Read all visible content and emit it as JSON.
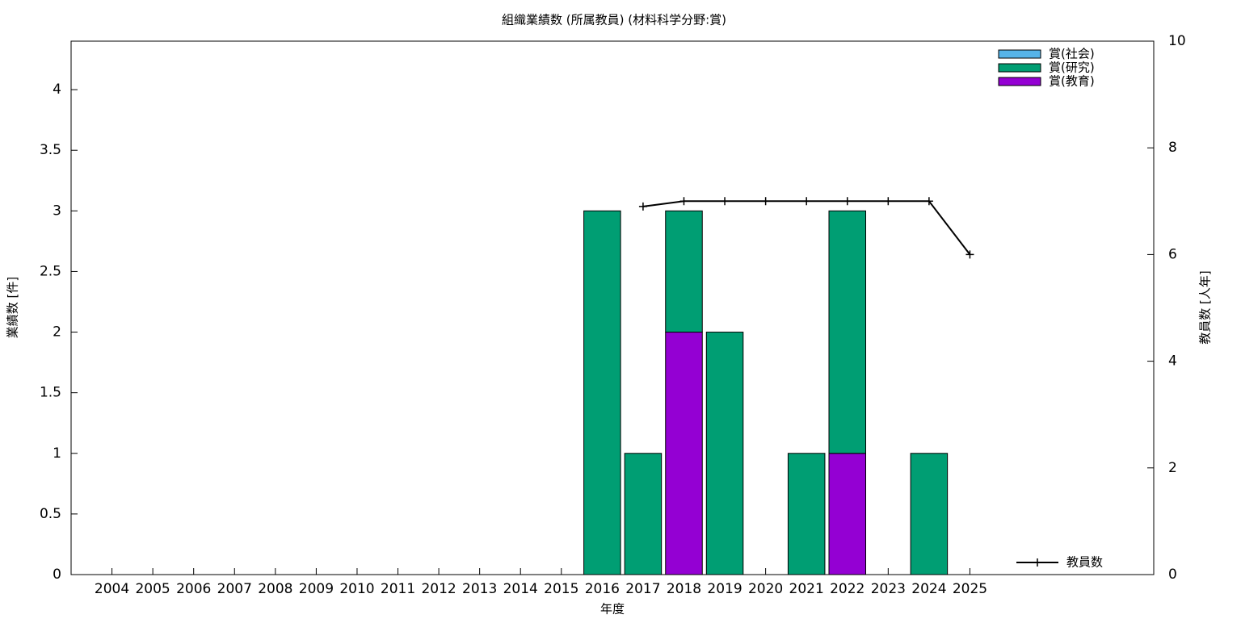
{
  "chart_data": {
    "type": "bar",
    "stacked": true,
    "title": "組織業績数 (所属教員) (材料科学分野:賞)",
    "x_label": "年度",
    "y_label": "業績数 [件]",
    "y2_label": "教員数 [人年]",
    "categories": [
      "2004",
      "2005",
      "2006",
      "2007",
      "2008",
      "2009",
      "2010",
      "2011",
      "2012",
      "2013",
      "2014",
      "2015",
      "2016",
      "2017",
      "2018",
      "2019",
      "2020",
      "2021",
      "2022",
      "2023",
      "2024",
      "2025"
    ],
    "series": [
      {
        "name": "賞(社会)",
        "color": "#56b4e9",
        "values": [
          0,
          0,
          0,
          0,
          0,
          0,
          0,
          0,
          0,
          0,
          0,
          0,
          0,
          0,
          0,
          0,
          0,
          0,
          0,
          0,
          0,
          0
        ]
      },
      {
        "name": "賞(研究)",
        "color": "#009e73",
        "values": [
          0,
          0,
          0,
          0,
          0,
          0,
          0,
          0,
          0,
          0,
          0,
          0,
          3,
          1,
          1,
          2,
          0,
          1,
          2,
          0,
          1,
          0
        ]
      },
      {
        "name": "賞(教育)",
        "color": "#9400d3",
        "values": [
          0,
          0,
          0,
          0,
          0,
          0,
          0,
          0,
          0,
          0,
          0,
          0,
          0,
          0,
          2,
          0,
          0,
          0,
          1,
          0,
          0,
          0
        ]
      },
      {
        "name": "教員数",
        "type": "line",
        "axis": "y2",
        "color": "#000000",
        "values": [
          null,
          null,
          null,
          null,
          null,
          null,
          null,
          null,
          null,
          null,
          null,
          null,
          null,
          6.9,
          7,
          7,
          7,
          7,
          7,
          7,
          7,
          6
        ]
      }
    ],
    "ylim": [
      0,
      4.4
    ],
    "yticks": [
      0,
      0.5,
      1,
      1.5,
      2,
      2.5,
      3,
      3.5,
      4
    ],
    "y2lim": [
      0,
      10
    ],
    "y2ticks": [
      0,
      2,
      4,
      6,
      8,
      10
    ]
  }
}
